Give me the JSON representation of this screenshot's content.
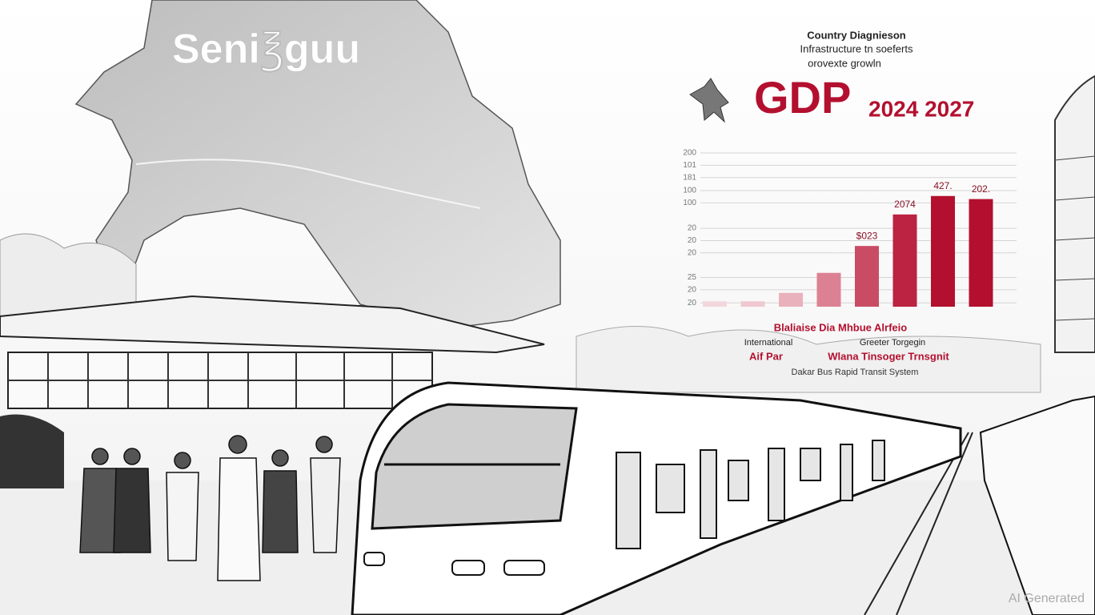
{
  "brand": "Seni℥guu",
  "header": {
    "lines": [
      "Country Diagnieson",
      "Infrastructure tn soeferts",
      "orovexte growln"
    ],
    "gdp": "GDP",
    "years": "2024 2027"
  },
  "chart_data": {
    "type": "bar",
    "categories": [
      null,
      null,
      null,
      null,
      null,
      null,
      null,
      null
    ],
    "values": [
      7,
      7,
      18,
      44,
      79,
      120,
      144,
      140
    ],
    "colors": [
      "#f3d6db",
      "#efc9d0",
      "#e9b1bc",
      "#dc8194",
      "#c94c65",
      "#bc2242",
      "#b3102f",
      "#b3102f"
    ],
    "bar_labels": [
      null,
      null,
      null,
      null,
      "$023",
      "2074",
      "427.",
      "202."
    ],
    "ylim": [
      0,
      200
    ],
    "yticks": [
      200,
      {
        "value": 184,
        "label": "101"
      },
      {
        "value": 168,
        "label": "181"
      },
      {
        "value": 151,
        "label": "100"
      },
      {
        "value": 135,
        "label": "100"
      },
      {
        "value": 102,
        "label": "20"
      },
      {
        "value": 86,
        "label": "20"
      },
      {
        "value": 70,
        "label": "20"
      },
      {
        "value": 38,
        "label": "25"
      },
      {
        "value": 22,
        "label": "20"
      },
      {
        "value": 5,
        "label": "20"
      }
    ],
    "grid": true
  },
  "caption": {
    "title": "Blaliaise Dia Mhbue Alrfeio",
    "left1": "International",
    "right1": "Greeter Torgegin",
    "left2": "Aif Par",
    "right2": "Wlana Tinsoger Trnsgnit",
    "bottom": "Dakar Bus Rapid Transit System"
  },
  "watermark": "AI Generated"
}
